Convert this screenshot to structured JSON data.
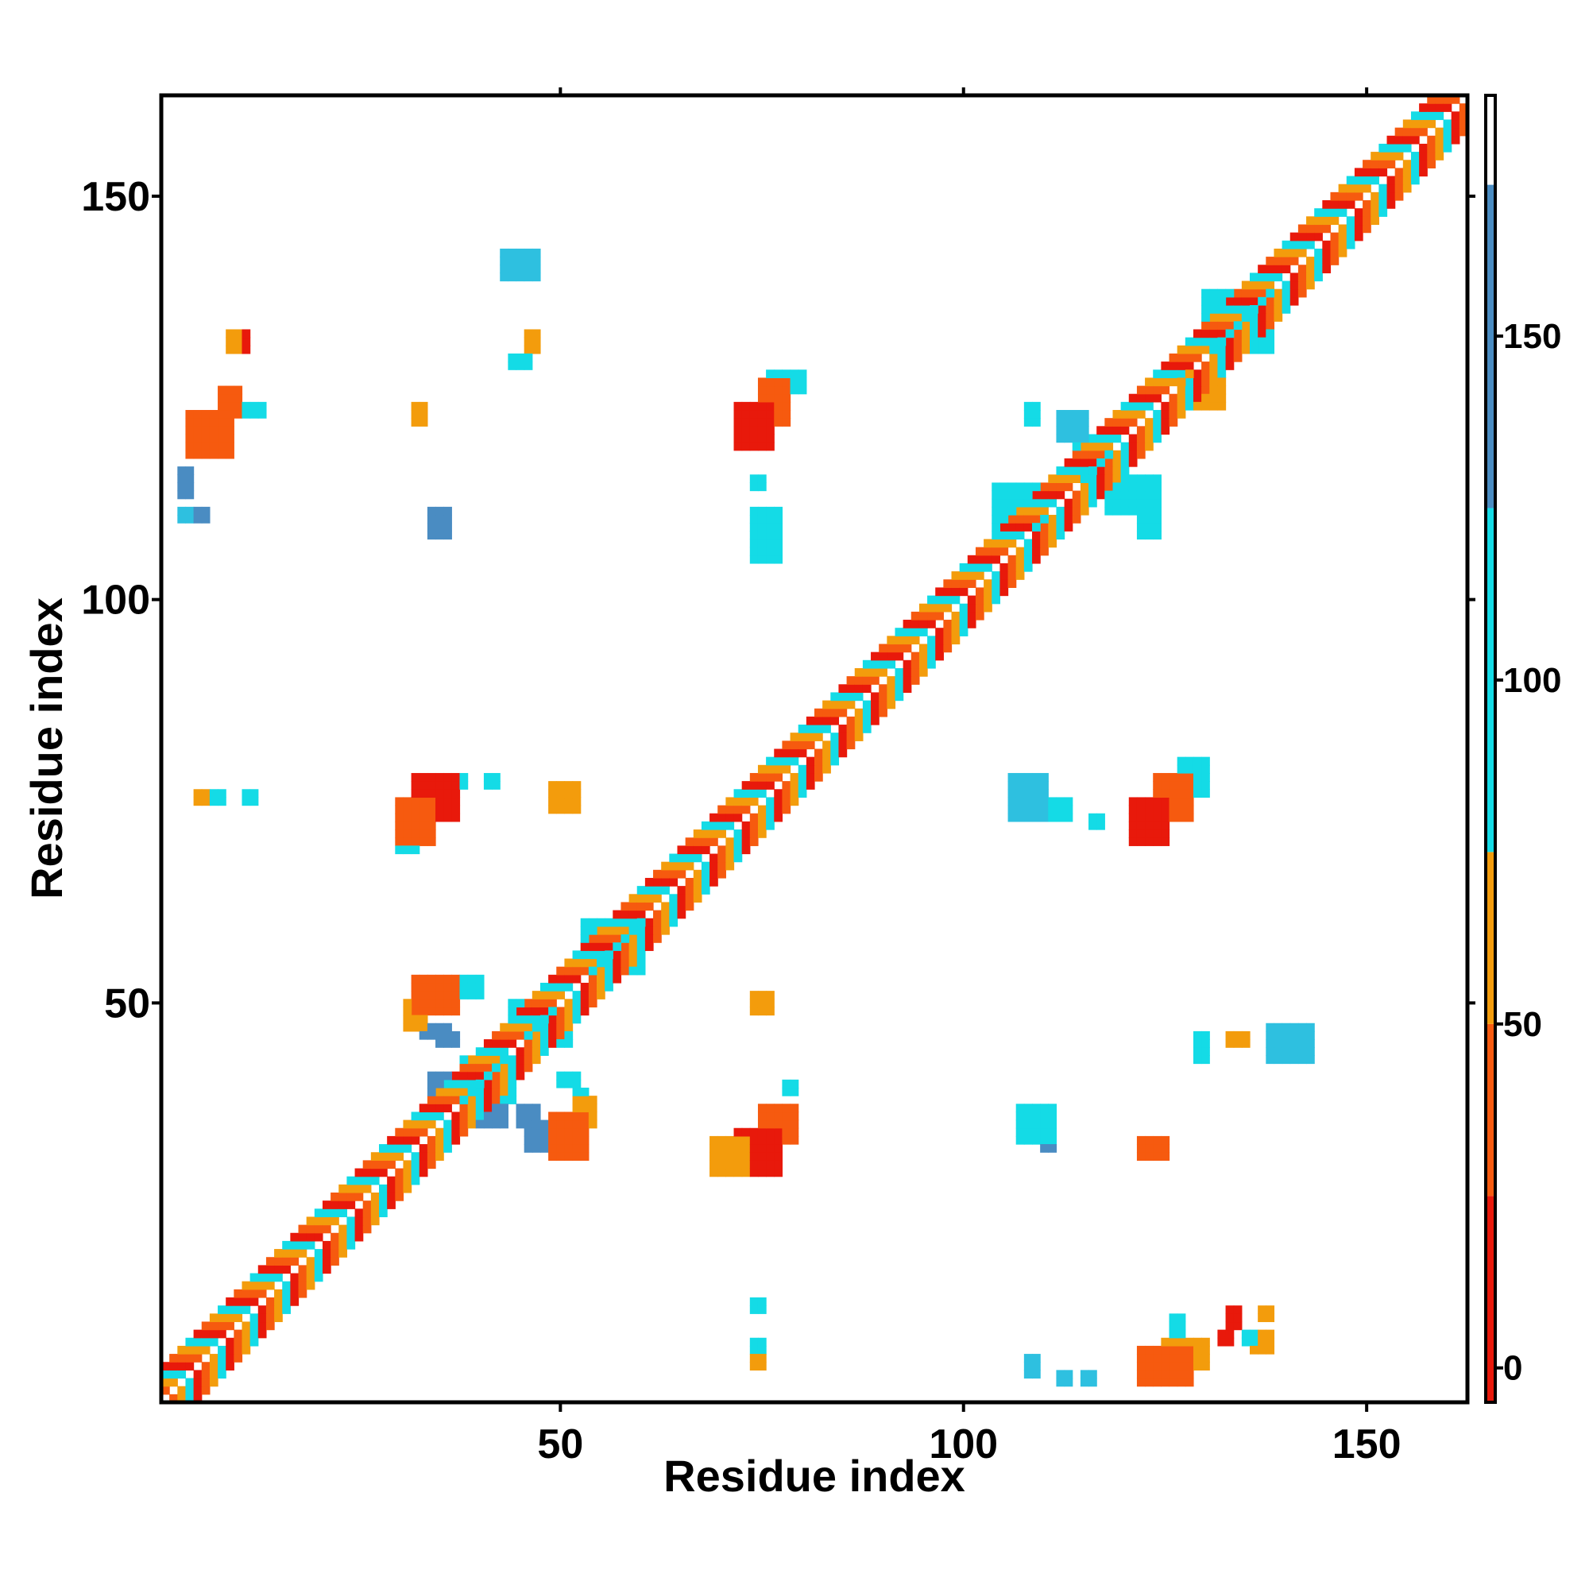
{
  "chart_data": {
    "type": "heatmap",
    "title": "",
    "xlabel": "Residue index",
    "ylabel": "Residue index",
    "xlim": [
      0.5,
      162.5
    ],
    "ylim": [
      0.5,
      162.5
    ],
    "x_ticks": [
      50,
      100,
      150
    ],
    "y_ticks": [
      50,
      100,
      150
    ],
    "grid": false,
    "legend": "colorbar-right",
    "colorbar": {
      "range": [
        -5,
        185
      ],
      "ticks": [
        0,
        50,
        100,
        150
      ],
      "bands": [
        {
          "from": -5,
          "to": 25,
          "color": "#e8190b"
        },
        {
          "from": 25,
          "to": 50,
          "color": "#f65a0f"
        },
        {
          "from": 50,
          "to": 75,
          "color": "#f39c0c"
        },
        {
          "from": 75,
          "to": 125,
          "color": "#14dbe6"
        },
        {
          "from": 125,
          "to": 172,
          "color": "#4a8cc2"
        },
        {
          "from": 172,
          "to": 185,
          "color": "#ffffff"
        }
      ]
    },
    "palette": {
      "red": "#e8190b",
      "redorange": "#f65a0f",
      "orange": "#f39c0c",
      "cyan": "#14dbe6",
      "sky": "#2ec0e0",
      "steel": "#4a8cc2"
    },
    "diagonal": {
      "from": 1,
      "to": 162,
      "pattern": [
        "red",
        "redorange",
        "orange",
        "cyan"
      ]
    },
    "blocks": [
      {
        "x": [
          4,
          9
        ],
        "y": [
          118,
          123
        ],
        "color": "redorange"
      },
      {
        "x": [
          8,
          10
        ],
        "y": [
          123,
          126
        ],
        "color": "redorange"
      },
      {
        "x": [
          9,
          10
        ],
        "y": [
          131,
          133
        ],
        "color": "orange"
      },
      {
        "x": [
          10,
          11
        ],
        "y": [
          131,
          133
        ],
        "color": "red"
      },
      {
        "x": [
          11,
          13
        ],
        "y": [
          123,
          124
        ],
        "color": "cyan"
      },
      {
        "x": [
          32,
          33
        ],
        "y": [
          122,
          124
        ],
        "color": "orange"
      },
      {
        "x": [
          34,
          36
        ],
        "y": [
          108,
          111
        ],
        "color": "steel"
      },
      {
        "x": [
          43,
          47
        ],
        "y": [
          140,
          143
        ],
        "color": "sky"
      },
      {
        "x": [
          46,
          47
        ],
        "y": [
          131,
          133
        ],
        "color": "orange"
      },
      {
        "x": [
          44,
          46
        ],
        "y": [
          129,
          130
        ],
        "color": "cyan"
      },
      {
        "x": [
          72,
          76
        ],
        "y": [
          119,
          124
        ],
        "color": "red"
      },
      {
        "x": [
          75,
          78
        ],
        "y": [
          122,
          127
        ],
        "color": "redorange"
      },
      {
        "x": [
          76,
          80
        ],
        "y": [
          126,
          128
        ],
        "color": "cyan"
      },
      {
        "x": [
          74,
          77
        ],
        "y": [
          105,
          111
        ],
        "color": "cyan"
      },
      {
        "x": [
          74,
          75
        ],
        "y": [
          114,
          115
        ],
        "color": "cyan"
      },
      {
        "x": [
          108,
          109
        ],
        "y": [
          122,
          124
        ],
        "color": "cyan"
      },
      {
        "x": [
          112,
          115
        ],
        "y": [
          120,
          123
        ],
        "color": "sky"
      },
      {
        "x": [
          114,
          118
        ],
        "y": [
          115,
          119
        ],
        "color": "cyan"
      },
      {
        "x": [
          118,
          124
        ],
        "y": [
          111,
          115
        ],
        "color": "cyan"
      },
      {
        "x": [
          122,
          124
        ],
        "y": [
          108,
          110
        ],
        "color": "cyan"
      },
      {
        "x": [
          130,
          138
        ],
        "y": [
          131,
          138
        ],
        "color": "cyan"
      },
      {
        "x": [
          127,
          132
        ],
        "y": [
          124,
          128
        ],
        "color": "orange"
      },
      {
        "x": [
          104,
          110
        ],
        "y": [
          109,
          114
        ],
        "color": "cyan"
      },
      {
        "x": [
          30,
          34
        ],
        "y": [
          70,
          75
        ],
        "color": "redorange"
      },
      {
        "x": [
          32,
          37
        ],
        "y": [
          73,
          78
        ],
        "color": "red"
      },
      {
        "x": [
          30,
          32
        ],
        "y": [
          69,
          72
        ],
        "color": "cyan"
      },
      {
        "x": [
          37,
          38
        ],
        "y": [
          77,
          78
        ],
        "color": "cyan"
      },
      {
        "x": [
          41,
          42
        ],
        "y": [
          77,
          78
        ],
        "color": "cyan"
      },
      {
        "x": [
          5,
          6
        ],
        "y": [
          75,
          76
        ],
        "color": "orange"
      },
      {
        "x": [
          7,
          8
        ],
        "y": [
          75,
          76
        ],
        "color": "cyan"
      },
      {
        "x": [
          11,
          12
        ],
        "y": [
          75,
          76
        ],
        "color": "cyan"
      },
      {
        "x": [
          49,
          52
        ],
        "y": [
          74,
          77
        ],
        "color": "orange"
      },
      {
        "x": [
          53,
          60
        ],
        "y": [
          54,
          60
        ],
        "color": "cyan"
      },
      {
        "x": [
          32,
          37
        ],
        "y": [
          49,
          53
        ],
        "color": "redorange"
      },
      {
        "x": [
          31,
          33
        ],
        "y": [
          47,
          50
        ],
        "color": "orange"
      },
      {
        "x": [
          37,
          40
        ],
        "y": [
          51,
          53
        ],
        "color": "cyan"
      },
      {
        "x": [
          33,
          36
        ],
        "y": [
          46,
          47
        ],
        "color": "steel"
      },
      {
        "x": [
          35,
          37
        ],
        "y": [
          45,
          46
        ],
        "color": "steel"
      },
      {
        "x": [
          44,
          49
        ],
        "y": [
          46,
          50
        ],
        "color": "cyan"
      },
      {
        "x": [
          47,
          51
        ],
        "y": [
          45,
          47
        ],
        "color": "cyan"
      },
      {
        "x": [
          34,
          37
        ],
        "y": [
          39,
          41
        ],
        "color": "steel"
      },
      {
        "x": [
          38,
          44
        ],
        "y": [
          38,
          43
        ],
        "color": "cyan"
      },
      {
        "x": [
          40,
          43
        ],
        "y": [
          35,
          38
        ],
        "color": "steel"
      },
      {
        "x": [
          45,
          47
        ],
        "y": [
          35,
          37
        ],
        "color": "steel"
      },
      {
        "x": [
          46,
          48
        ],
        "y": [
          32,
          35
        ],
        "color": "steel"
      },
      {
        "x": [
          49,
          53
        ],
        "y": [
          31,
          36
        ],
        "color": "redorange"
      },
      {
        "x": [
          52,
          54
        ],
        "y": [
          35,
          38
        ],
        "color": "orange"
      },
      {
        "x": [
          52,
          53
        ],
        "y": [
          38,
          39
        ],
        "color": "cyan"
      },
      {
        "x": [
          50,
          52
        ],
        "y": [
          40,
          41
        ],
        "color": "cyan"
      },
      {
        "x": [
          74,
          76
        ],
        "y": [
          49,
          51
        ],
        "color": "orange"
      },
      {
        "x": [
          78,
          79
        ],
        "y": [
          39,
          40
        ],
        "color": "cyan"
      },
      {
        "x": [
          69,
          73
        ],
        "y": [
          29,
          33
        ],
        "color": "orange"
      },
      {
        "x": [
          72,
          77
        ],
        "y": [
          29,
          34
        ],
        "color": "red"
      },
      {
        "x": [
          75,
          79
        ],
        "y": [
          33,
          37
        ],
        "color": "redorange"
      },
      {
        "x": [
          69,
          72
        ],
        "y": [
          29,
          30
        ],
        "color": "cyan"
      },
      {
        "x": [
          74,
          75
        ],
        "y": [
          12,
          13
        ],
        "color": "cyan"
      },
      {
        "x": [
          74,
          75
        ],
        "y": [
          7,
          8
        ],
        "color": "cyan"
      },
      {
        "x": [
          74,
          75
        ],
        "y": [
          5,
          6
        ],
        "color": "orange"
      },
      {
        "x": [
          106,
          110
        ],
        "y": [
          73,
          78
        ],
        "color": "sky"
      },
      {
        "x": [
          109,
          113
        ],
        "y": [
          73,
          75
        ],
        "color": "cyan"
      },
      {
        "x": [
          116,
          117
        ],
        "y": [
          72,
          73
        ],
        "color": "cyan"
      },
      {
        "x": [
          121,
          125
        ],
        "y": [
          70,
          75
        ],
        "color": "red"
      },
      {
        "x": [
          124,
          128
        ],
        "y": [
          73,
          78
        ],
        "color": "redorange"
      },
      {
        "x": [
          127,
          130
        ],
        "y": [
          76,
          80
        ],
        "color": "cyan"
      },
      {
        "x": [
          129,
          130
        ],
        "y": [
          43,
          46
        ],
        "color": "cyan"
      },
      {
        "x": [
          133,
          135
        ],
        "y": [
          45,
          46
        ],
        "color": "orange"
      },
      {
        "x": [
          138,
          143
        ],
        "y": [
          43,
          47
        ],
        "color": "sky"
      },
      {
        "x": [
          107,
          111
        ],
        "y": [
          33,
          37
        ],
        "color": "cyan"
      },
      {
        "x": [
          110,
          111
        ],
        "y": [
          32,
          35
        ],
        "color": "steel"
      },
      {
        "x": [
          122,
          125
        ],
        "y": [
          31,
          33
        ],
        "color": "redorange"
      },
      {
        "x": [
          122,
          128
        ],
        "y": [
          3,
          7
        ],
        "color": "redorange"
      },
      {
        "x": [
          125,
          130
        ],
        "y": [
          5,
          8
        ],
        "color": "orange"
      },
      {
        "x": [
          126,
          127
        ],
        "y": [
          8,
          11
        ],
        "color": "cyan"
      },
      {
        "x": [
          132,
          133
        ],
        "y": [
          8,
          9
        ],
        "color": "red"
      },
      {
        "x": [
          133,
          134
        ],
        "y": [
          10,
          12
        ],
        "color": "red"
      },
      {
        "x": [
          135,
          136
        ],
        "y": [
          8,
          9
        ],
        "color": "cyan"
      },
      {
        "x": [
          136,
          138
        ],
        "y": [
          7,
          9
        ],
        "color": "orange"
      },
      {
        "x": [
          137,
          138
        ],
        "y": [
          11,
          12
        ],
        "color": "orange"
      },
      {
        "x": [
          108,
          109
        ],
        "y": [
          4,
          6
        ],
        "color": "sky"
      },
      {
        "x": [
          112,
          113
        ],
        "y": [
          3,
          4
        ],
        "color": "sky"
      },
      {
        "x": [
          115,
          116
        ],
        "y": [
          3,
          4
        ],
        "color": "sky"
      },
      {
        "x": [
          3,
          4
        ],
        "y": [
          113,
          116
        ],
        "color": "steel"
      },
      {
        "x": [
          3,
          4
        ],
        "y": [
          110,
          111
        ],
        "color": "sky"
      },
      {
        "x": [
          5,
          6
        ],
        "y": [
          110,
          111
        ],
        "color": "steel"
      }
    ]
  }
}
